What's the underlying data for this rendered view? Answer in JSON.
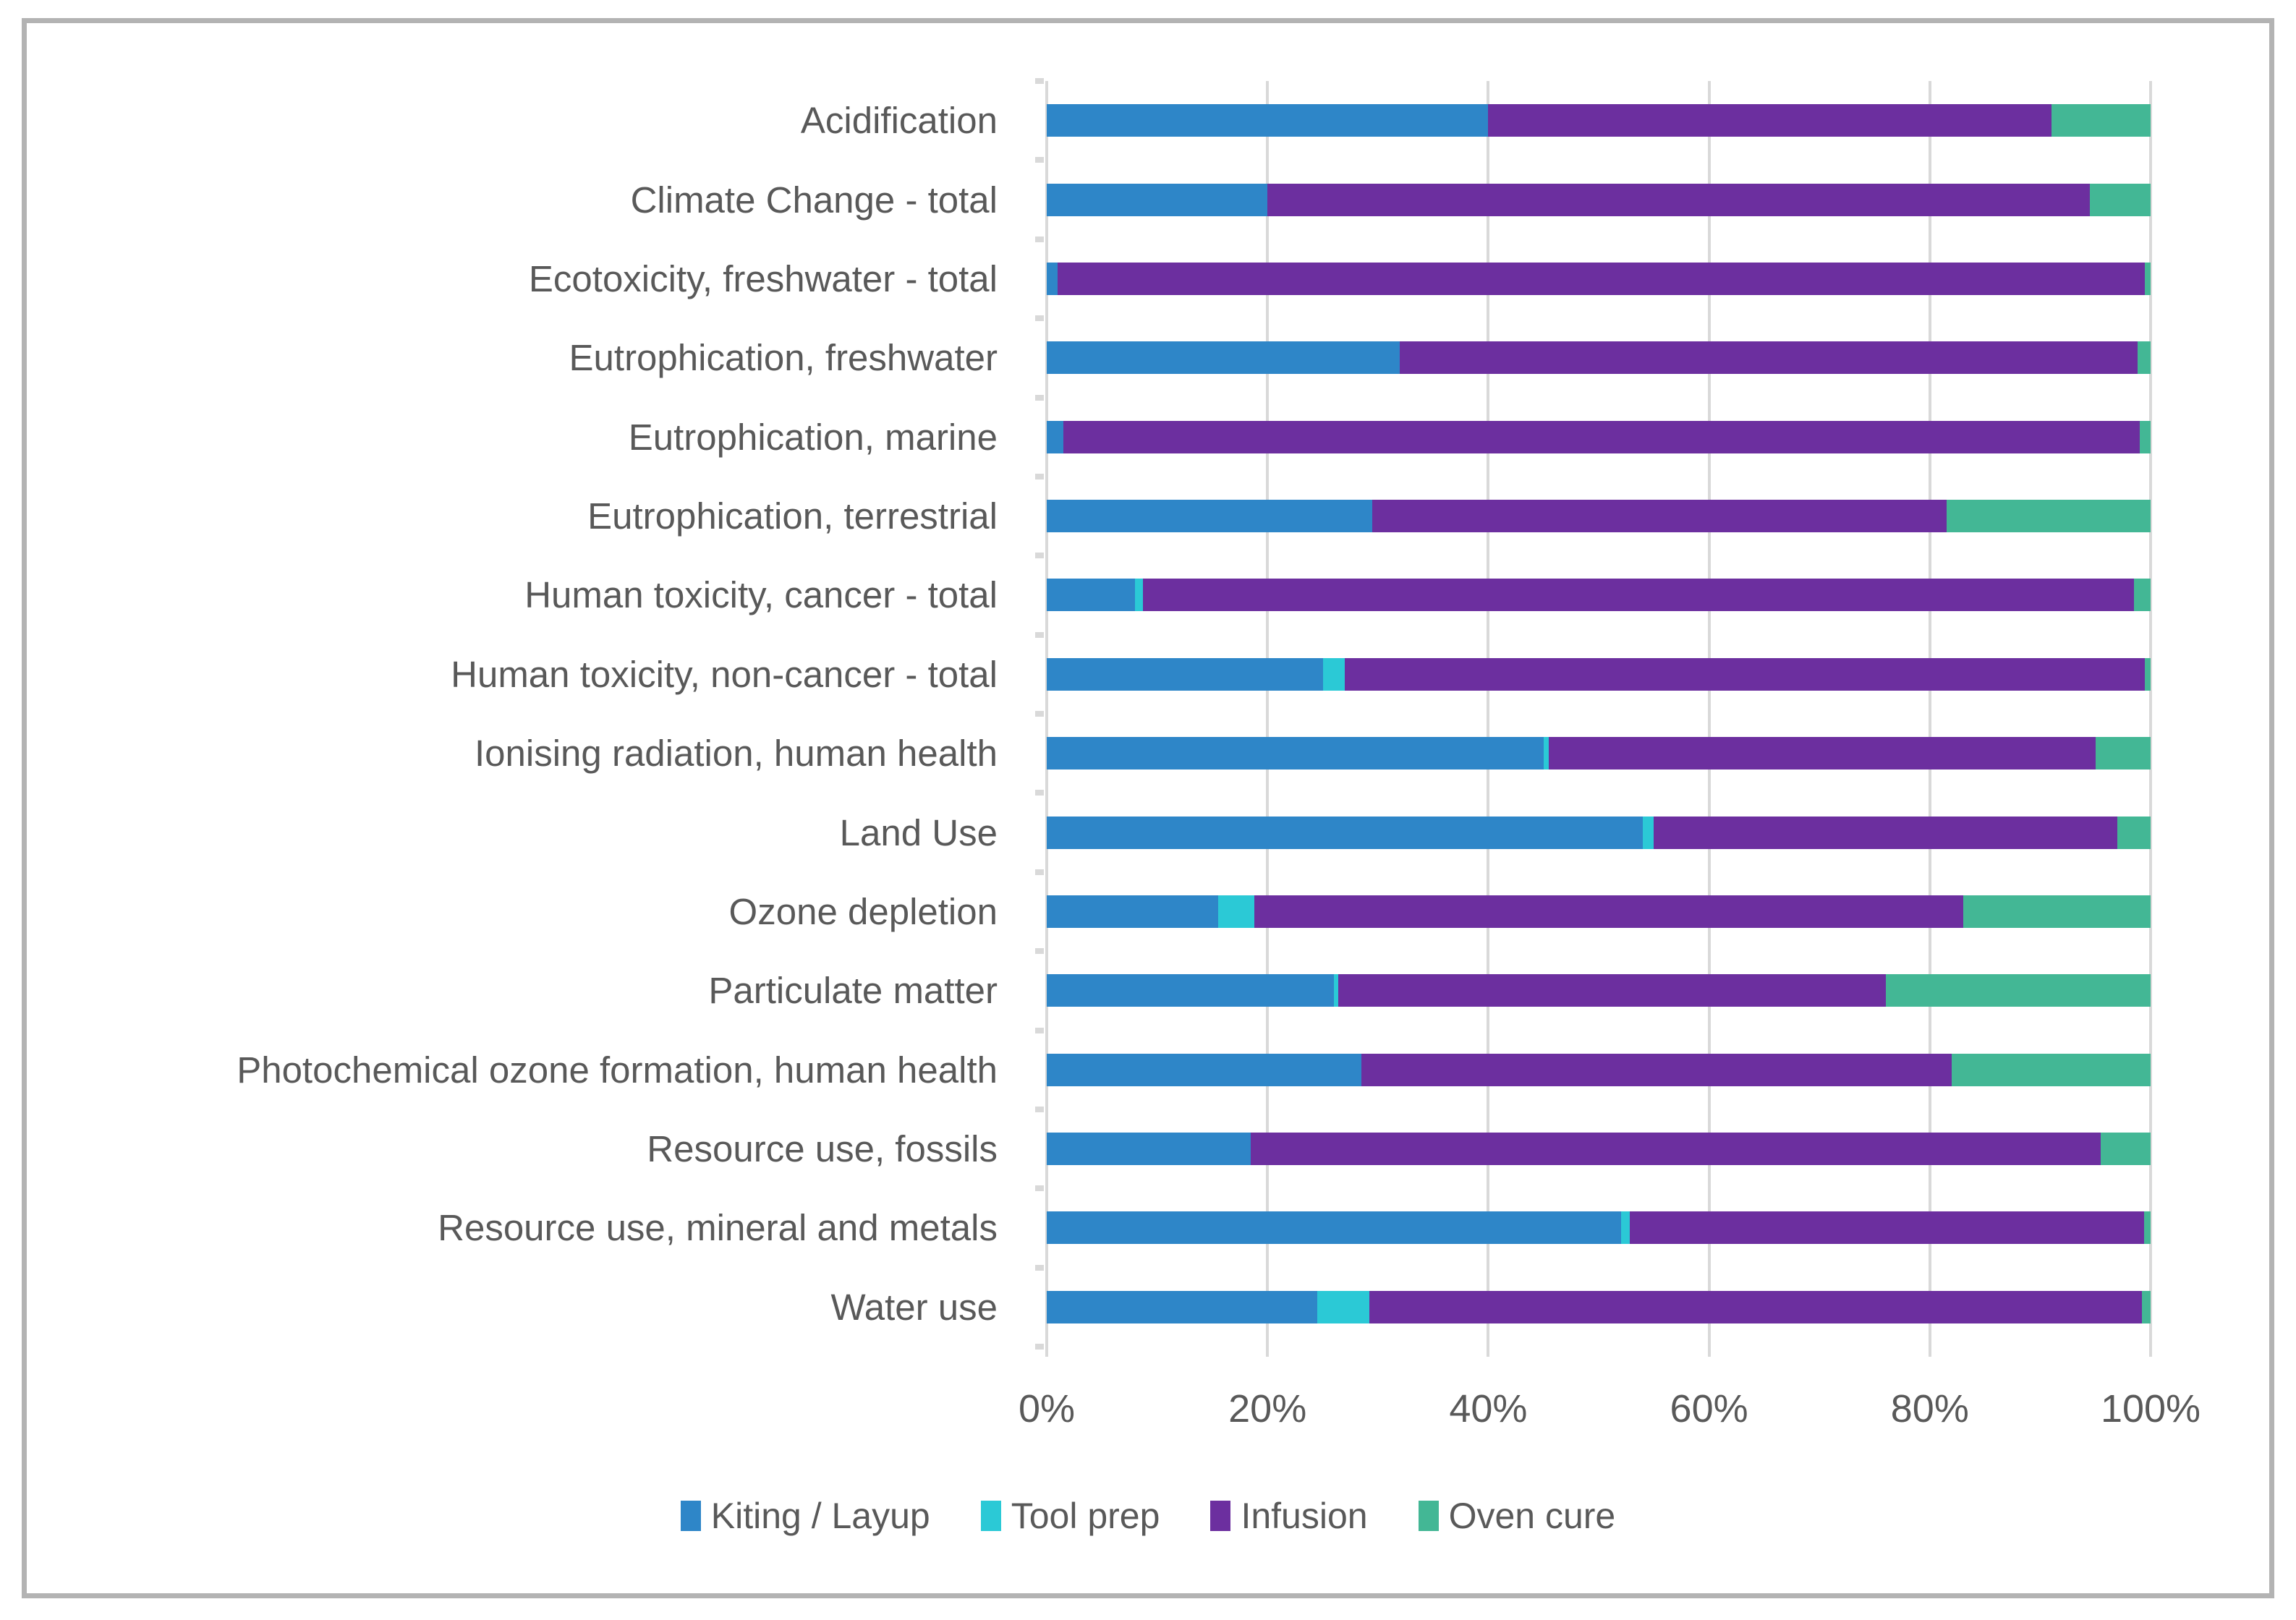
{
  "figure": {
    "background": "#FFFFFF",
    "border_color": "#B3B3B3",
    "text_color": "#595959",
    "gridline_color": "#D9D9D9"
  },
  "chart_data": {
    "type": "bar",
    "orientation": "horizontal",
    "stacked": true,
    "value_unit": "percent",
    "title": "",
    "xlabel": "",
    "ylabel": "",
    "categories": [
      "Acidification",
      "Climate Change - total",
      "Ecotoxicity, freshwater - total",
      "Eutrophication, freshwater",
      "Eutrophication, marine",
      "Eutrophication, terrestrial",
      "Human toxicity, cancer - total",
      "Human toxicity, non-cancer - total",
      "Ionising radiation, human health",
      "Land Use",
      "Ozone depletion",
      "Particulate matter",
      "Photochemical ozone formation, human health",
      "Resource use, fossils",
      "Resource use, mineral and metals",
      "Water use"
    ],
    "series": [
      {
        "name": "Kiting / Layup",
        "color": "#2E86C8",
        "values": [
          40,
          20,
          1,
          32,
          1.5,
          29.5,
          8,
          25,
          45,
          54,
          15.5,
          26,
          28.5,
          18.5,
          52,
          24.5
        ]
      },
      {
        "name": "Tool prep",
        "color": "#2BC9D6",
        "values": [
          0,
          0,
          0,
          0,
          0,
          0,
          0.7,
          2,
          0.5,
          1,
          3.3,
          0.4,
          0,
          0,
          0.8,
          4.7
        ]
      },
      {
        "name": "Infusion",
        "color": "#6C2F9F",
        "values": [
          51,
          74.5,
          98.5,
          66.8,
          97.5,
          52,
          89.8,
          72.5,
          49.5,
          42,
          64.2,
          49.6,
          53.5,
          77,
          46.6,
          70
        ]
      },
      {
        "name": "Oven cure",
        "color": "#43B795",
        "values": [
          9,
          5.5,
          0.5,
          1.2,
          1,
          18.5,
          1.5,
          0.5,
          5,
          3,
          17,
          24,
          18,
          4.5,
          0.6,
          0.8
        ]
      }
    ],
    "x_axis": {
      "min": 0,
      "max": 100,
      "tick_labels": [
        "0%",
        "20%",
        "40%",
        "60%",
        "80%",
        "100%"
      ],
      "tick_values": [
        0,
        20,
        40,
        60,
        80,
        100
      ],
      "gridlines": true
    },
    "legend": {
      "position": "bottom",
      "entries": [
        "Kiting / Layup",
        "Tool prep",
        "Infusion",
        "Oven cure"
      ]
    }
  }
}
